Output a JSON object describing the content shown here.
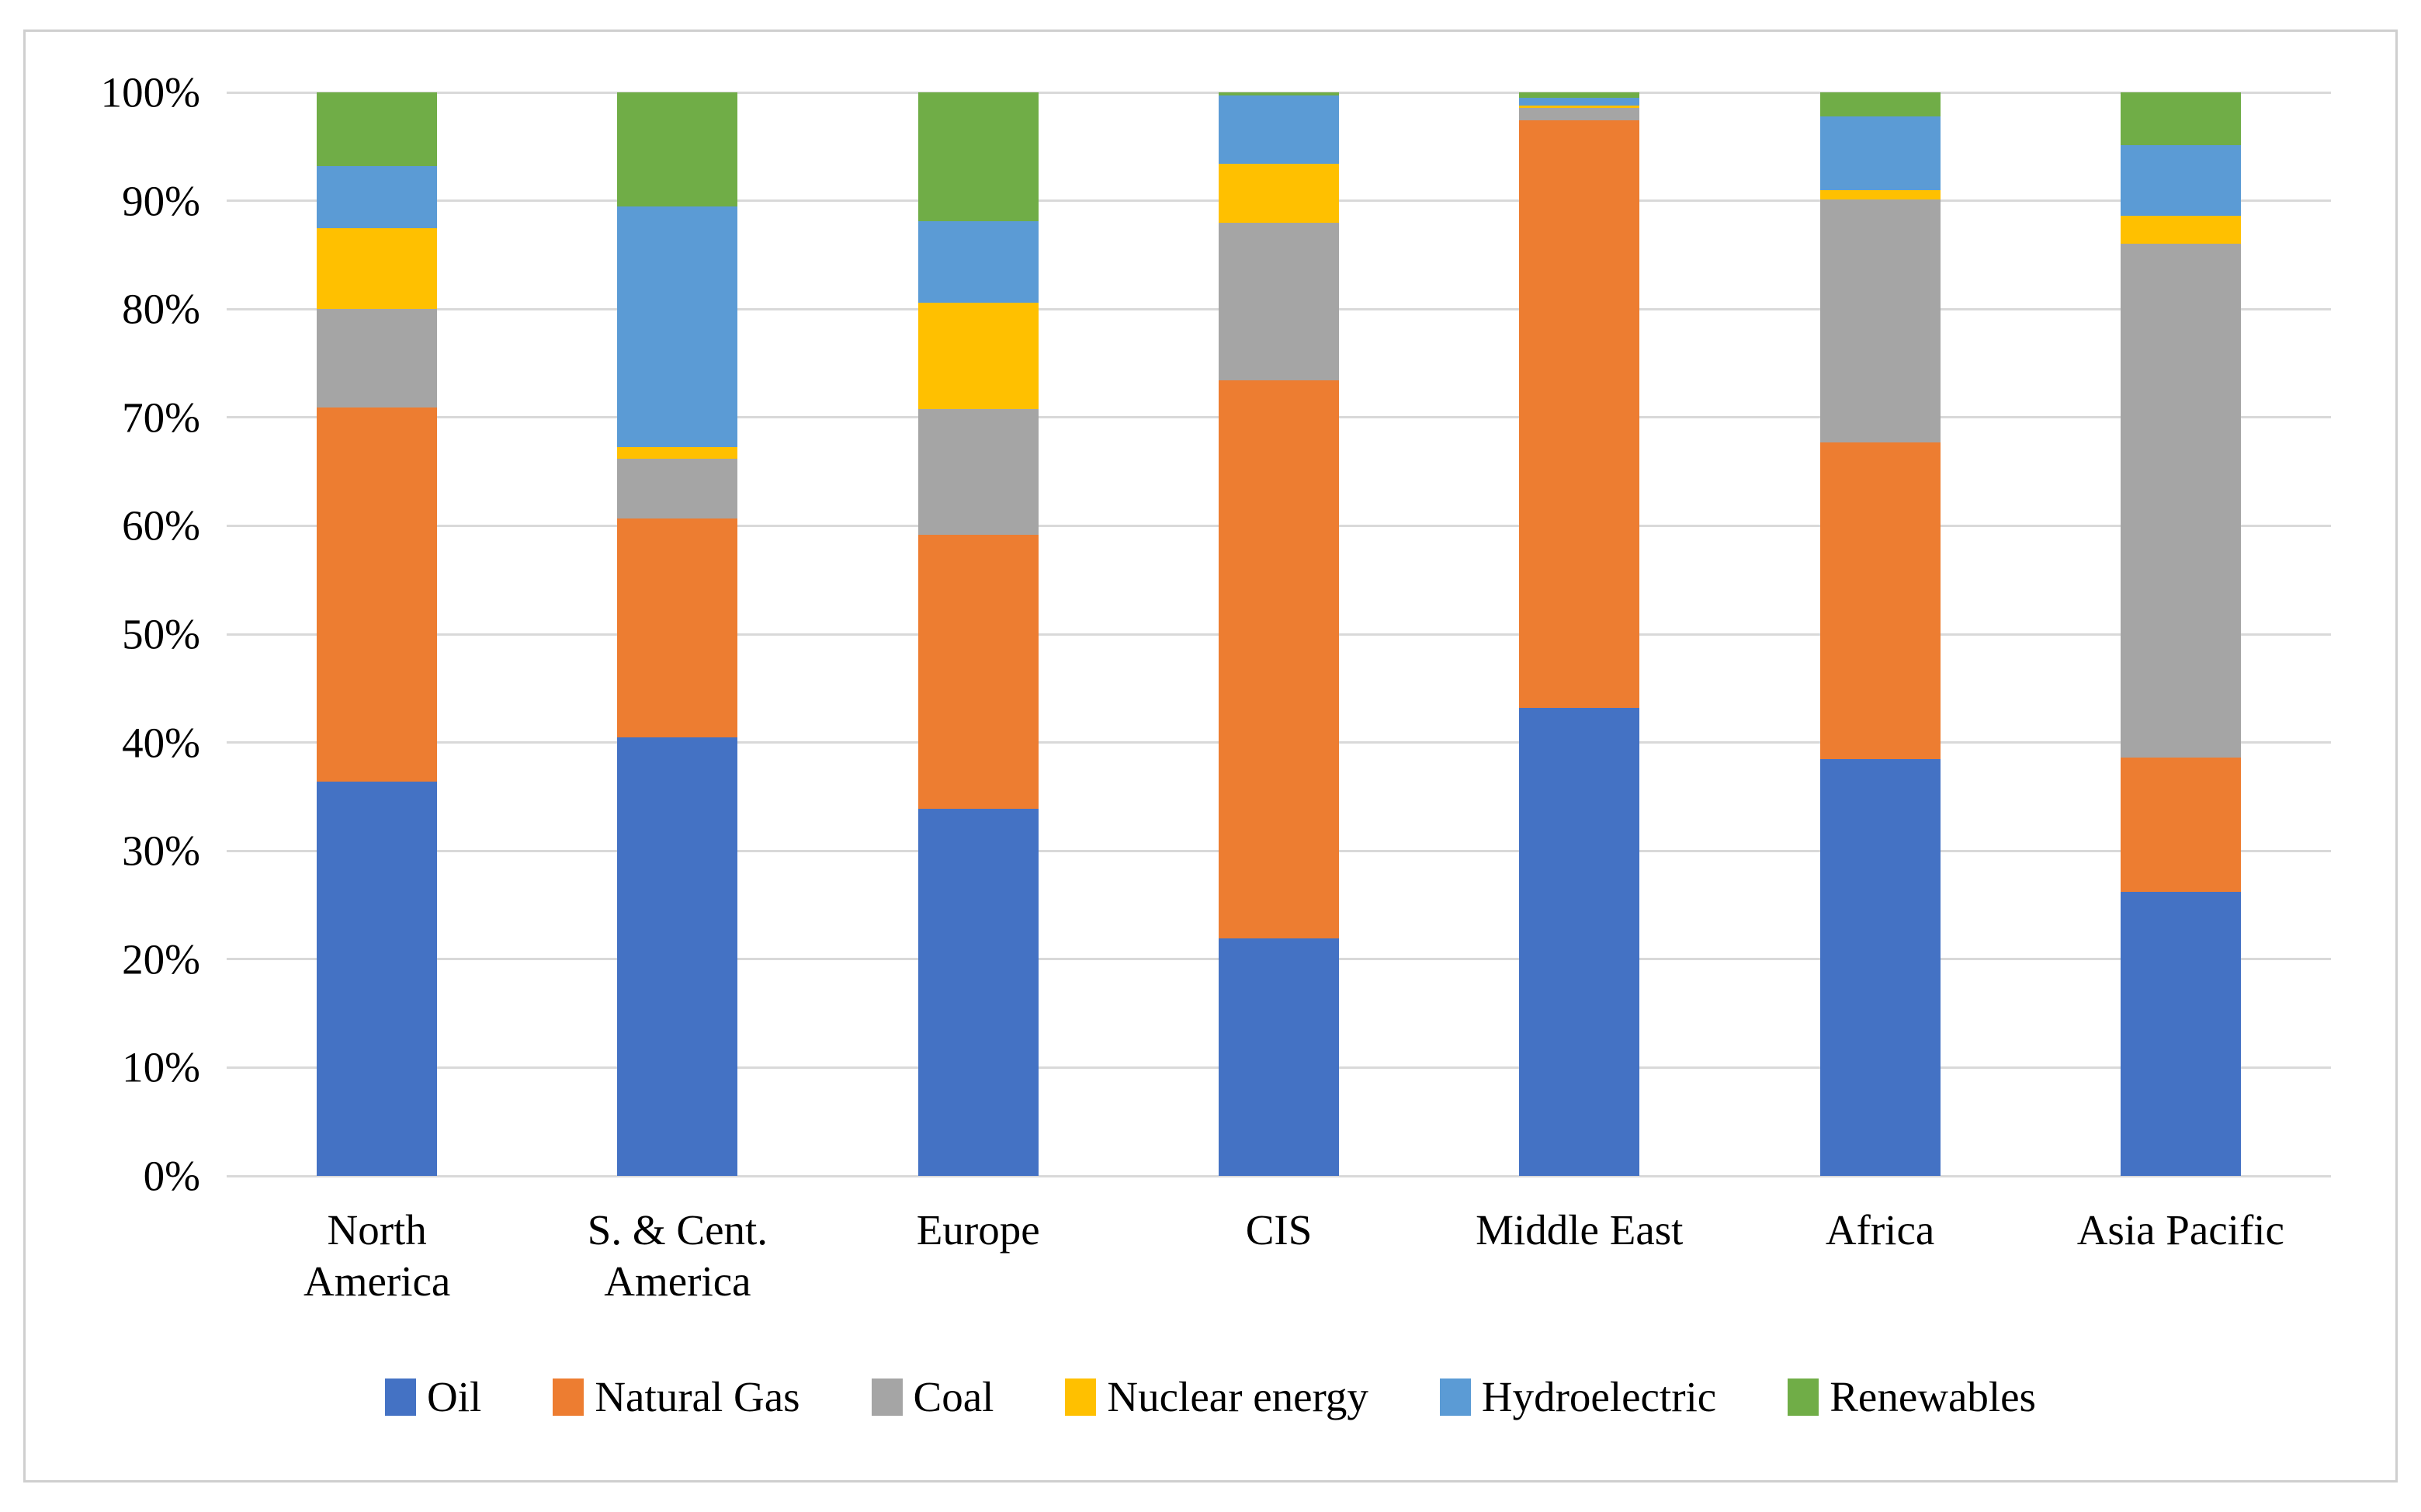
{
  "chart_data": {
    "type": "bar",
    "variant": "stacked-100-percent-column",
    "title": "",
    "xlabel": "",
    "ylabel": "",
    "grid": true,
    "legend_position": "bottom",
    "y_axis": {
      "min": 0,
      "max": 100,
      "step": 10,
      "ticks": [
        "0%",
        "10%",
        "20%",
        "30%",
        "40%",
        "50%",
        "60%",
        "70%",
        "80%",
        "90%",
        "100%"
      ]
    },
    "categories": [
      [
        "North",
        "America"
      ],
      [
        "S. & Cent.",
        "America"
      ],
      [
        "Europe"
      ],
      [
        "CIS"
      ],
      [
        "Middle East"
      ],
      [
        "Africa"
      ],
      [
        "Asia Pacific"
      ]
    ],
    "series": [
      {
        "name": "Oil",
        "color": "#4472C4",
        "values": [
          36.4,
          40.5,
          33.9,
          21.9,
          43.2,
          38.5,
          26.2
        ]
      },
      {
        "name": "Natural Gas",
        "color": "#ED7D31",
        "values": [
          34.5,
          20.2,
          25.3,
          51.5,
          54.2,
          29.2,
          12.4
        ]
      },
      {
        "name": "Coal",
        "color": "#A5A5A5",
        "values": [
          9.1,
          5.5,
          11.6,
          14.6,
          1.2,
          22.4,
          47.4
        ]
      },
      {
        "name": "Nuclear energy",
        "color": "#FFC000",
        "values": [
          7.5,
          1.1,
          9.8,
          5.4,
          0.2,
          0.9,
          2.6
        ]
      },
      {
        "name": "Hydroelectric",
        "color": "#5B9BD5",
        "values": [
          5.7,
          22.2,
          7.5,
          6.3,
          0.7,
          6.8,
          6.5
        ]
      },
      {
        "name": "Renewables",
        "color": "#70AD47",
        "values": [
          6.8,
          10.5,
          11.9,
          0.3,
          0.5,
          2.2,
          4.9
        ]
      }
    ],
    "colors": {
      "gridline": "#d9d9d9",
      "frame_border": "#cfcfcf",
      "background": "#ffffff",
      "text": "#000000"
    }
  }
}
